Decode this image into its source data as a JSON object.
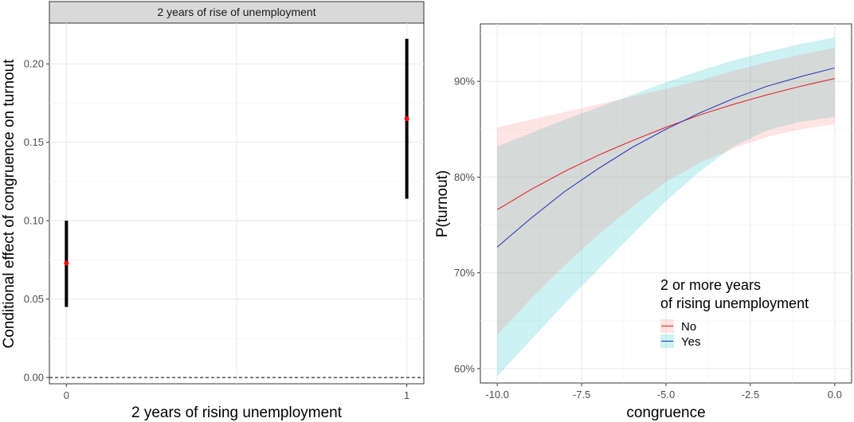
{
  "chart_data": [
    {
      "type": "errorbar",
      "facet_label": "2 years of rise of unemployment",
      "xlabel": "2 years of rising unemployment",
      "ylabel": "Conditional effect of congruence on turnout",
      "x_ticks": [
        "0",
        "1"
      ],
      "x_values": [
        0,
        1
      ],
      "xlim": [
        -0.05,
        1.05
      ],
      "y_ticks": [
        "0.00",
        "0.05",
        "0.10",
        "0.15",
        "0.20"
      ],
      "ylim": [
        -0.004,
        0.226
      ],
      "points": [
        {
          "x": 0,
          "estimate": 0.073,
          "lower": 0.045,
          "upper": 0.1
        },
        {
          "x": 1,
          "estimate": 0.165,
          "lower": 0.114,
          "upper": 0.216
        }
      ],
      "reference_line": 0,
      "colors": {
        "point": "#ff0000",
        "bar": "#000000",
        "strip": "#d9d9d9",
        "grid": "#ebebeb"
      }
    },
    {
      "type": "line",
      "xlabel": "congruence",
      "ylabel": "P(turnout)",
      "x_ticks": [
        "-10.0",
        "-7.5",
        "-5.0",
        "-2.5",
        "0.0"
      ],
      "xlim": [
        -10.5,
        0.5
      ],
      "y_ticks": [
        "60%",
        "70%",
        "80%",
        "90%"
      ],
      "ylim": [
        0.585,
        0.96
      ],
      "legend": {
        "title_line1": "2 or more years",
        "title_line2": "of rising unemployment",
        "position": "bottom-right"
      },
      "x": [
        -10,
        -9,
        -8,
        -7,
        -6,
        -5,
        -4,
        -3,
        -2,
        -1,
        0
      ],
      "series": [
        {
          "name": "No",
          "line_color": "#e31a1c",
          "fill_color": "#f8766d",
          "values": [
            0.766,
            0.787,
            0.806,
            0.823,
            0.838,
            0.852,
            0.865,
            0.876,
            0.886,
            0.895,
            0.903
          ],
          "lower": [
            0.635,
            0.673,
            0.708,
            0.74,
            0.769,
            0.795,
            0.815,
            0.83,
            0.842,
            0.85,
            0.855
          ],
          "upper": [
            0.852,
            0.86,
            0.868,
            0.876,
            0.884,
            0.892,
            0.901,
            0.911,
            0.92,
            0.928,
            0.935
          ]
        },
        {
          "name": "Yes",
          "line_color": "#1f2db4",
          "fill_color": "#00bfc4",
          "values": [
            0.727,
            0.757,
            0.785,
            0.809,
            0.831,
            0.85,
            0.867,
            0.882,
            0.895,
            0.905,
            0.914
          ],
          "lower": [
            0.592,
            0.63,
            0.668,
            0.704,
            0.74,
            0.775,
            0.806,
            0.832,
            0.849,
            0.858,
            0.863
          ],
          "upper": [
            0.832,
            0.846,
            0.86,
            0.873,
            0.886,
            0.899,
            0.911,
            0.922,
            0.931,
            0.939,
            0.946
          ]
        }
      ]
    }
  ]
}
